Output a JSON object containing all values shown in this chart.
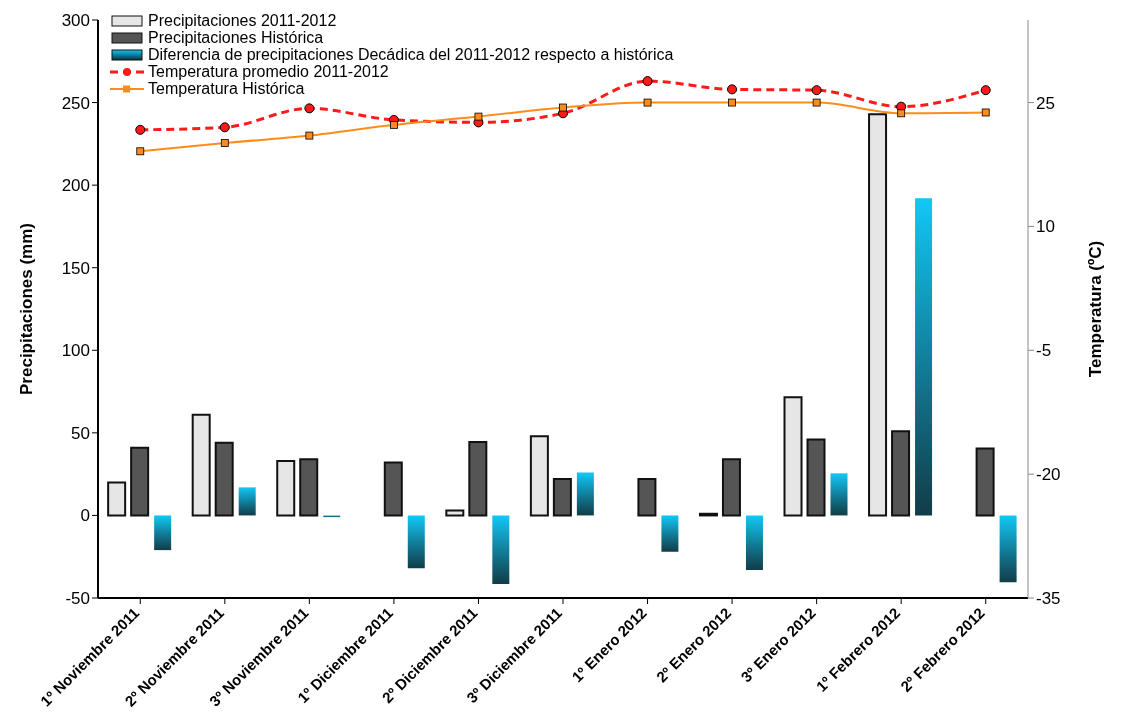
{
  "chart_data": {
    "type": "bar",
    "ylabel": "Precipitaciones (mm)",
    "y2label": "Temperatura (ºC)",
    "categories": [
      "1º Noviembre 2011",
      "2º Noviembre 2011",
      "3º Noviembre 2011",
      "1º Diciembre 2011",
      "2º Diciembre 2011",
      "3º Diciembre 2011",
      "1º Enero 2012",
      "2º Enero 2012",
      "3º Enero 2012",
      "1º Febrero 2012",
      "2º Febrero 2012"
    ],
    "series": [
      {
        "name": "Precipitaciones 2011-2012",
        "color": "#e6e6e6",
        "values": [
          20,
          61,
          33,
          0,
          3,
          48,
          0,
          1,
          71.5,
          243,
          0
        ]
      },
      {
        "name": "Precipitaciones Histórica",
        "color": "#555555",
        "values": [
          41,
          44,
          34,
          32,
          44.5,
          22,
          22,
          34,
          46,
          51,
          40.5
        ]
      },
      {
        "name": "Diferencia de precipitaciones Decádica del 2011-2012 respecto a histórica",
        "color": "#12c8f7",
        "values": [
          -21,
          17,
          -1,
          -32,
          -41.5,
          26,
          -22,
          -33,
          25.5,
          192,
          -40.5
        ]
      },
      {
        "name": "Temperatura promedio 2011-2012",
        "type": "line",
        "axis": "y2",
        "color": "#ff1a1a",
        "line_style": "dashed",
        "marker": "circle",
        "values": [
          21.7,
          22.0,
          24.3,
          22.9,
          22.6,
          23.7,
          27.6,
          26.6,
          26.5,
          24.5,
          26.5
        ]
      },
      {
        "name": "Temperatura Histórica",
        "type": "line",
        "axis": "y2",
        "color": "#ff8c1a",
        "line_style": "solid",
        "marker": "square",
        "values": [
          19.1,
          20.1,
          21.0,
          22.3,
          23.3,
          24.4,
          25.0,
          25.0,
          25.0,
          23.7,
          23.8
        ]
      }
    ],
    "ylim": [
      -50,
      300
    ],
    "yticks": [
      -50,
      0,
      50,
      100,
      150,
      200,
      250,
      300
    ],
    "y2lim": [
      -35,
      35
    ],
    "y2ticks": [
      -35,
      -20,
      -5,
      10,
      25
    ],
    "grid": false,
    "legend": "top left"
  }
}
